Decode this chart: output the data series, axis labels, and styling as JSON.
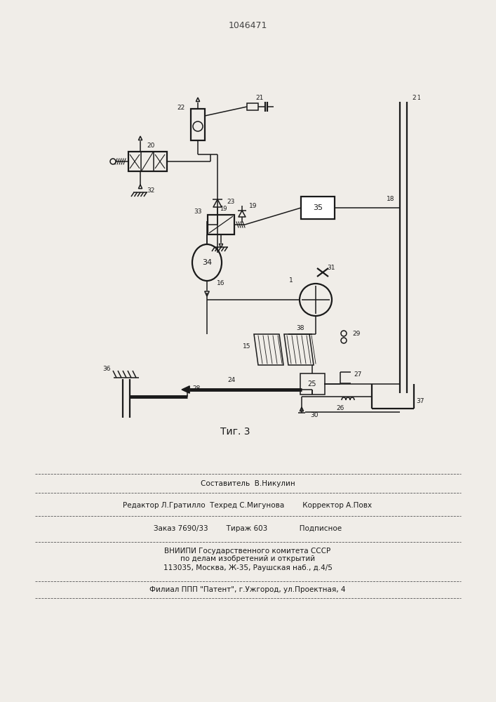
{
  "patent_number": "1046471",
  "figure_label": "Τиг. 3",
  "bg_color": "#f0ede8",
  "line_color": "#1a1a1a",
  "footer_line1": "Составитель  В.Никулин",
  "footer_line2": "Редактор Л.Гратилло  Техред С.Мигунова        Корректор А.Повх",
  "footer_line3": "Заказ 7690/33        Тираж 603              Подписное",
  "footer_line4": "ВНИИПИ Государственного комитета СССР",
  "footer_line5": "по делам изобретений и открытий",
  "footer_line6": "113035, Москва, Ж-35, Раушская наб., д.4/5",
  "footer_line7": "Филиал ППП \"Патент\", г.Ужгород, ул.Проектная, 4"
}
